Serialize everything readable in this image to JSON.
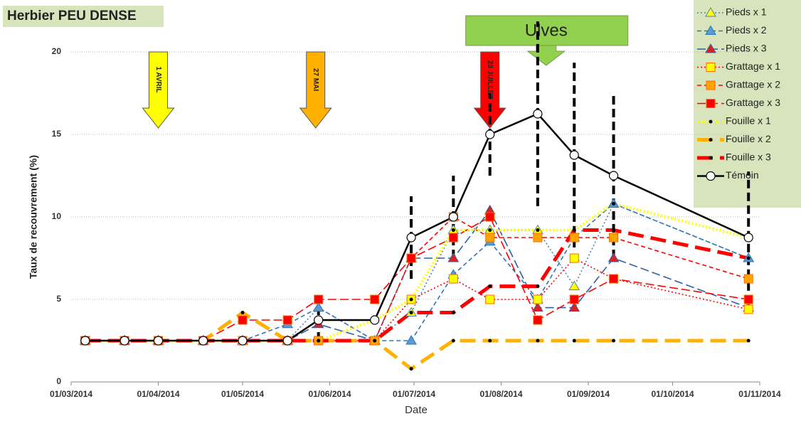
{
  "chart_data": {
    "type": "line",
    "title": "Herbier PEU DENSE",
    "xlabel": "Date",
    "ylabel": "Taux de recouvrement (%)",
    "x": [
      "2014-03-06",
      "2014-03-20",
      "2014-04-01",
      "2014-04-17",
      "2014-05-01",
      "2014-05-17",
      "2014-05-28",
      "2014-06-17",
      "2014-06-30",
      "2014-07-15",
      "2014-07-28",
      "2014-08-14",
      "2014-08-27",
      "2014-09-10",
      "2014-10-28"
    ],
    "xlim": [
      "2014-03-01",
      "2014-11-01"
    ],
    "xticks": [
      {
        "value": "2014-03-01",
        "label": "01/03/2014"
      },
      {
        "value": "2014-04-01",
        "label": "01/04/2014"
      },
      {
        "value": "2014-05-01",
        "label": "01/05/2014"
      },
      {
        "value": "2014-06-01",
        "label": "01/06/2014"
      },
      {
        "value": "2014-07-01",
        "label": "01/07/2014"
      },
      {
        "value": "2014-08-01",
        "label": "01/08/2014"
      },
      {
        "value": "2014-09-01",
        "label": "01/09/2014"
      },
      {
        "value": "2014-10-01",
        "label": "01/10/2014"
      },
      {
        "value": "2014-11-01",
        "label": "01/11/2014"
      }
    ],
    "ylim": [
      0,
      20
    ],
    "yticks": [
      0,
      5,
      10,
      15,
      20
    ],
    "grid": true,
    "legend": "top-right",
    "series": [
      {
        "name": "Pieds x 1",
        "color": "#4f81bd",
        "marker": "triangle",
        "marker_color": "#ffff00",
        "dash": "dot",
        "values": [
          2.5,
          2.5,
          2.5,
          2.5,
          2.5,
          2.5,
          4.5,
          2.5,
          4.2,
          9.2,
          9.2,
          9.2,
          5.8,
          10.8,
          7.5
        ]
      },
      {
        "name": "Pieds x 2",
        "color": "#2e75b6",
        "marker": "triangle",
        "marker_color": "#5b9bd5",
        "dash": "dash",
        "values": [
          2.5,
          2.5,
          2.5,
          2.5,
          2.5,
          3.5,
          4.5,
          2.5,
          2.5,
          6.5,
          8.5,
          5,
          8.75,
          10.8,
          7.5
        ]
      },
      {
        "name": "Pieds x 3",
        "color": "#2e5fa8",
        "marker": "triangle",
        "marker_color": "#e02020",
        "dash": "longdash",
        "values": [
          2.5,
          2.5,
          2.5,
          2.5,
          2.5,
          2.5,
          3.5,
          2.5,
          7.5,
          7.5,
          10.4,
          4.5,
          4.5,
          7.5,
          4.5
        ]
      },
      {
        "name": "Grattage x 1",
        "color": "#ff0000",
        "marker": "square",
        "marker_color": "#ffff00",
        "dash": "dot",
        "values": [
          2.5,
          2.5,
          2.5,
          2.5,
          2.5,
          2.5,
          2.5,
          2.5,
          5,
          6.25,
          5,
          5,
          7.5,
          6.25,
          4.4
        ]
      },
      {
        "name": "Grattage x 2",
        "color": "#ff0000",
        "marker": "square",
        "marker_color": "#ffa500",
        "dash": "dash",
        "values": [
          2.5,
          2.5,
          2.5,
          2.5,
          2.5,
          2.5,
          2.5,
          2.5,
          7.5,
          10,
          8.75,
          8.75,
          8.75,
          8.75,
          6.25
        ]
      },
      {
        "name": "Grattage x 3",
        "color": "#ff0000",
        "marker": "square",
        "marker_color": "#ff0000",
        "dash": "longdash",
        "values": [
          2.5,
          2.5,
          2.5,
          2.5,
          3.75,
          3.75,
          5,
          5,
          7.5,
          8.75,
          10,
          3.75,
          5,
          6.25,
          5
        ]
      },
      {
        "name": "Fouille x 1",
        "color": "#ffff00",
        "marker": "dot",
        "marker_color": "#000000",
        "dash": "dot",
        "width": 4,
        "values": [
          2.5,
          2.5,
          2.5,
          2.5,
          2.5,
          2.5,
          2.5,
          3.75,
          5,
          9.2,
          9.2,
          9.2,
          9.2,
          10.8,
          8.75
        ]
      },
      {
        "name": "Fouille x 2",
        "color": "#ffb000",
        "marker": "dot",
        "marker_color": "#000000",
        "dash": "thickdash",
        "width": 5,
        "values": [
          2.5,
          2.5,
          2.5,
          2.5,
          4.2,
          2.5,
          2.5,
          2.5,
          0.8,
          2.5,
          2.5,
          2.5,
          2.5,
          2.5,
          2.5
        ]
      },
      {
        "name": "Fouille x 3",
        "color": "#ff0000",
        "marker": "dot",
        "marker_color": "#000000",
        "dash": "thickdash",
        "width": 5,
        "values": [
          2.5,
          2.5,
          2.5,
          2.5,
          2.5,
          2.5,
          2.5,
          2.5,
          4.2,
          4.2,
          5.8,
          5.8,
          9.2,
          9.2,
          7.5
        ]
      },
      {
        "name": "Témoin",
        "color": "#000000",
        "marker": "circle",
        "marker_color": "#ffffff",
        "dash": "solid",
        "width": 2.5,
        "values": [
          2.5,
          2.5,
          2.5,
          2.5,
          2.5,
          2.5,
          3.75,
          3.75,
          8.75,
          10,
          15,
          16.25,
          13.75,
          12.5,
          8.75
        ],
        "errors": [
          null,
          null,
          null,
          null,
          null,
          null,
          1.25,
          null,
          2.5,
          2.5,
          2.5,
          5.6,
          5.6,
          5,
          4
        ]
      }
    ],
    "annotations": [
      {
        "text": "1 AVRIL",
        "x": "2014-04-01",
        "color": "#ffff00"
      },
      {
        "text": "27 MAI",
        "x": "2014-05-27",
        "color": "#ffb000"
      },
      {
        "text": "28 JUILLET",
        "x": "2014-07-28",
        "color": "#ff0000"
      }
    ],
    "callout": {
      "text": "Ulves",
      "x": "2014-08-17",
      "color": "#92d050"
    }
  }
}
